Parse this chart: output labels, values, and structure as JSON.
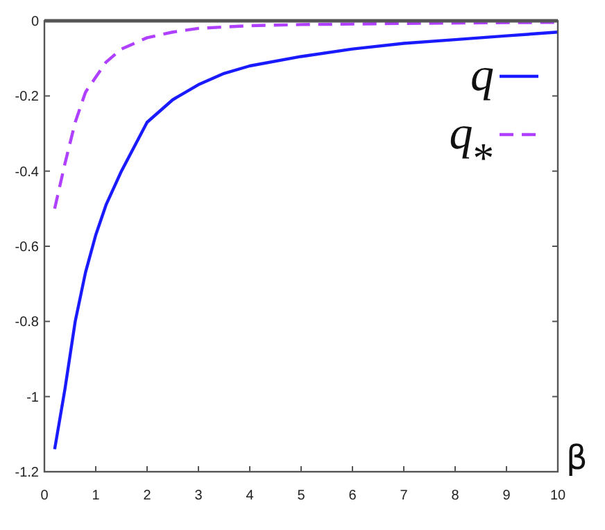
{
  "chart_data": {
    "type": "line",
    "xlabel": "β",
    "xlim": [
      0,
      10
    ],
    "ylim": [
      -1.2,
      0
    ],
    "xticks": [
      0,
      1,
      2,
      3,
      4,
      5,
      6,
      7,
      8,
      9,
      10
    ],
    "yticks": [
      -1.2,
      -1,
      -0.8,
      -0.6,
      -0.4,
      -0.2,
      0
    ],
    "legend": "top right",
    "grid": false,
    "series": [
      {
        "name": "q",
        "color": "#1a1aff",
        "line_style": "solid",
        "x": [
          0.2,
          0.4,
          0.6,
          0.8,
          1,
          1.2,
          1.5,
          2,
          2.5,
          3,
          3.5,
          4,
          5,
          6,
          7,
          8,
          9,
          10
        ],
        "values": [
          -1.14,
          -0.98,
          -0.8,
          -0.67,
          -0.57,
          -0.49,
          -0.4,
          -0.27,
          -0.21,
          -0.17,
          -0.14,
          -0.12,
          -0.095,
          -0.075,
          -0.06,
          -0.05,
          -0.04,
          -0.03
        ]
      },
      {
        "name": "q$_{*}$",
        "color": "#b040ff",
        "line_style": "dashed",
        "x": [
          0.2,
          0.4,
          0.6,
          0.8,
          1,
          1.2,
          1.5,
          2,
          2.5,
          3,
          4,
          5,
          7,
          10
        ],
        "values": [
          -0.5,
          -0.38,
          -0.27,
          -0.19,
          -0.15,
          -0.11,
          -0.075,
          -0.045,
          -0.03,
          -0.02,
          -0.013,
          -0.01,
          -0.007,
          -0.004
        ]
      }
    ]
  }
}
